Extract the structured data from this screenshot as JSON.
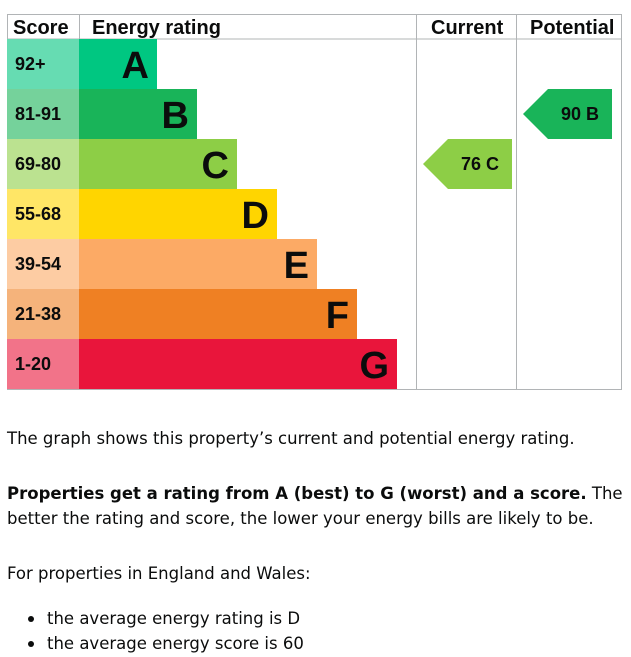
{
  "chart_data": {
    "type": "table",
    "headers": {
      "score": "Score",
      "rating": "Energy rating",
      "current": "Current",
      "potential": "Potential"
    },
    "bands": [
      {
        "score": "92+",
        "letter": "A",
        "color": "#00c781",
        "score_bg": "#66dcb2",
        "letter_color": "#0b0c0c"
      },
      {
        "score": "81-91",
        "letter": "B",
        "color": "#19b459",
        "score_bg": "#75d29b",
        "letter_color": "#0b0c0c"
      },
      {
        "score": "69-80",
        "letter": "C",
        "color": "#8dce46",
        "score_bg": "#bbe290",
        "letter_color": "#0b0c0c"
      },
      {
        "score": "55-68",
        "letter": "D",
        "color": "#ffd500",
        "score_bg": "#ffe666",
        "letter_color": "#0b0c0c"
      },
      {
        "score": "39-54",
        "letter": "E",
        "color": "#fcaa65",
        "score_bg": "#fdcca3",
        "letter_color": "#0b0c0c"
      },
      {
        "score": "21-38",
        "letter": "F",
        "color": "#ef8023",
        "score_bg": "#f5b37b",
        "letter_color": "#0b0c0c"
      },
      {
        "score": "1-20",
        "letter": "G",
        "color": "#e9153b",
        "score_bg": "#f27389",
        "letter_color": "#0b0c0c"
      }
    ],
    "current": {
      "score": 76,
      "letter": "C",
      "label": "76 C",
      "color": "#8dce46"
    },
    "potential": {
      "score": 90,
      "letter": "B",
      "label": "90 B",
      "color": "#19b459"
    }
  },
  "text": {
    "intro": "The graph shows this property’s current and potential energy rating.",
    "rating_bold": "Properties get a rating from A (best) to G (worst) and a score.",
    "rating_rest": " The better the rating and score, the lower your energy bills are likely to be.",
    "regional": "For properties in England and Wales:",
    "bullets": [
      "the average energy rating is D",
      "the average energy score is 60"
    ]
  }
}
